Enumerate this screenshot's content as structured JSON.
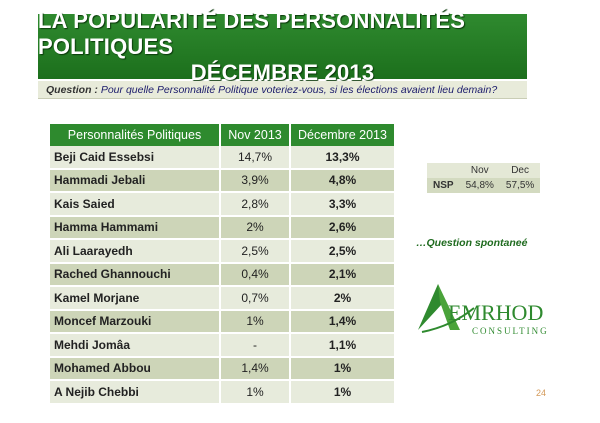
{
  "title": {
    "line1": "LA POPULARITÉ DES PERSONNALITÉS POLITIQUES",
    "line2": "DÉCEMBRE 2013"
  },
  "question": {
    "label": "Question :",
    "text": "Pour quelle Personnalité Politique voteriez-vous, si les élections avaient lieu demain?"
  },
  "table": {
    "headers": [
      "Personnalités Politiques",
      "Nov 2013",
      "Décembre 2013"
    ],
    "rows": [
      [
        "Beji Caid Essebsi",
        "14,7%",
        "13,3%"
      ],
      [
        "Hammadi Jebali",
        "3,9%",
        "4,8%"
      ],
      [
        "Kais Saied",
        "2,8%",
        "3,3%"
      ],
      [
        "Hamma Hammami",
        "2%",
        "2,6%"
      ],
      [
        "Ali Laarayedh",
        "2,5%",
        "2,5%"
      ],
      [
        "Rached Ghannouchi",
        "0,4%",
        "2,1%"
      ],
      [
        "Kamel Morjane",
        "0,7%",
        "2%"
      ],
      [
        "Moncef Marzouki",
        "1%",
        "1,4%"
      ],
      [
        "Mehdi Jomâa",
        "-",
        "1,1%"
      ],
      [
        "Mohamed Abbou",
        "1,4%",
        "1%"
      ],
      [
        "A Nejib Chebbi",
        "1%",
        "1%"
      ]
    ]
  },
  "nsp": {
    "headers": [
      "Nov",
      "Dec"
    ],
    "label": "NSP",
    "values": [
      "54,8%",
      "57,5%"
    ]
  },
  "note": "…Question spontaneé",
  "logo": {
    "text_main": "EMRHOD",
    "text_sub": "CONSULTING"
  },
  "page_number": "24"
}
